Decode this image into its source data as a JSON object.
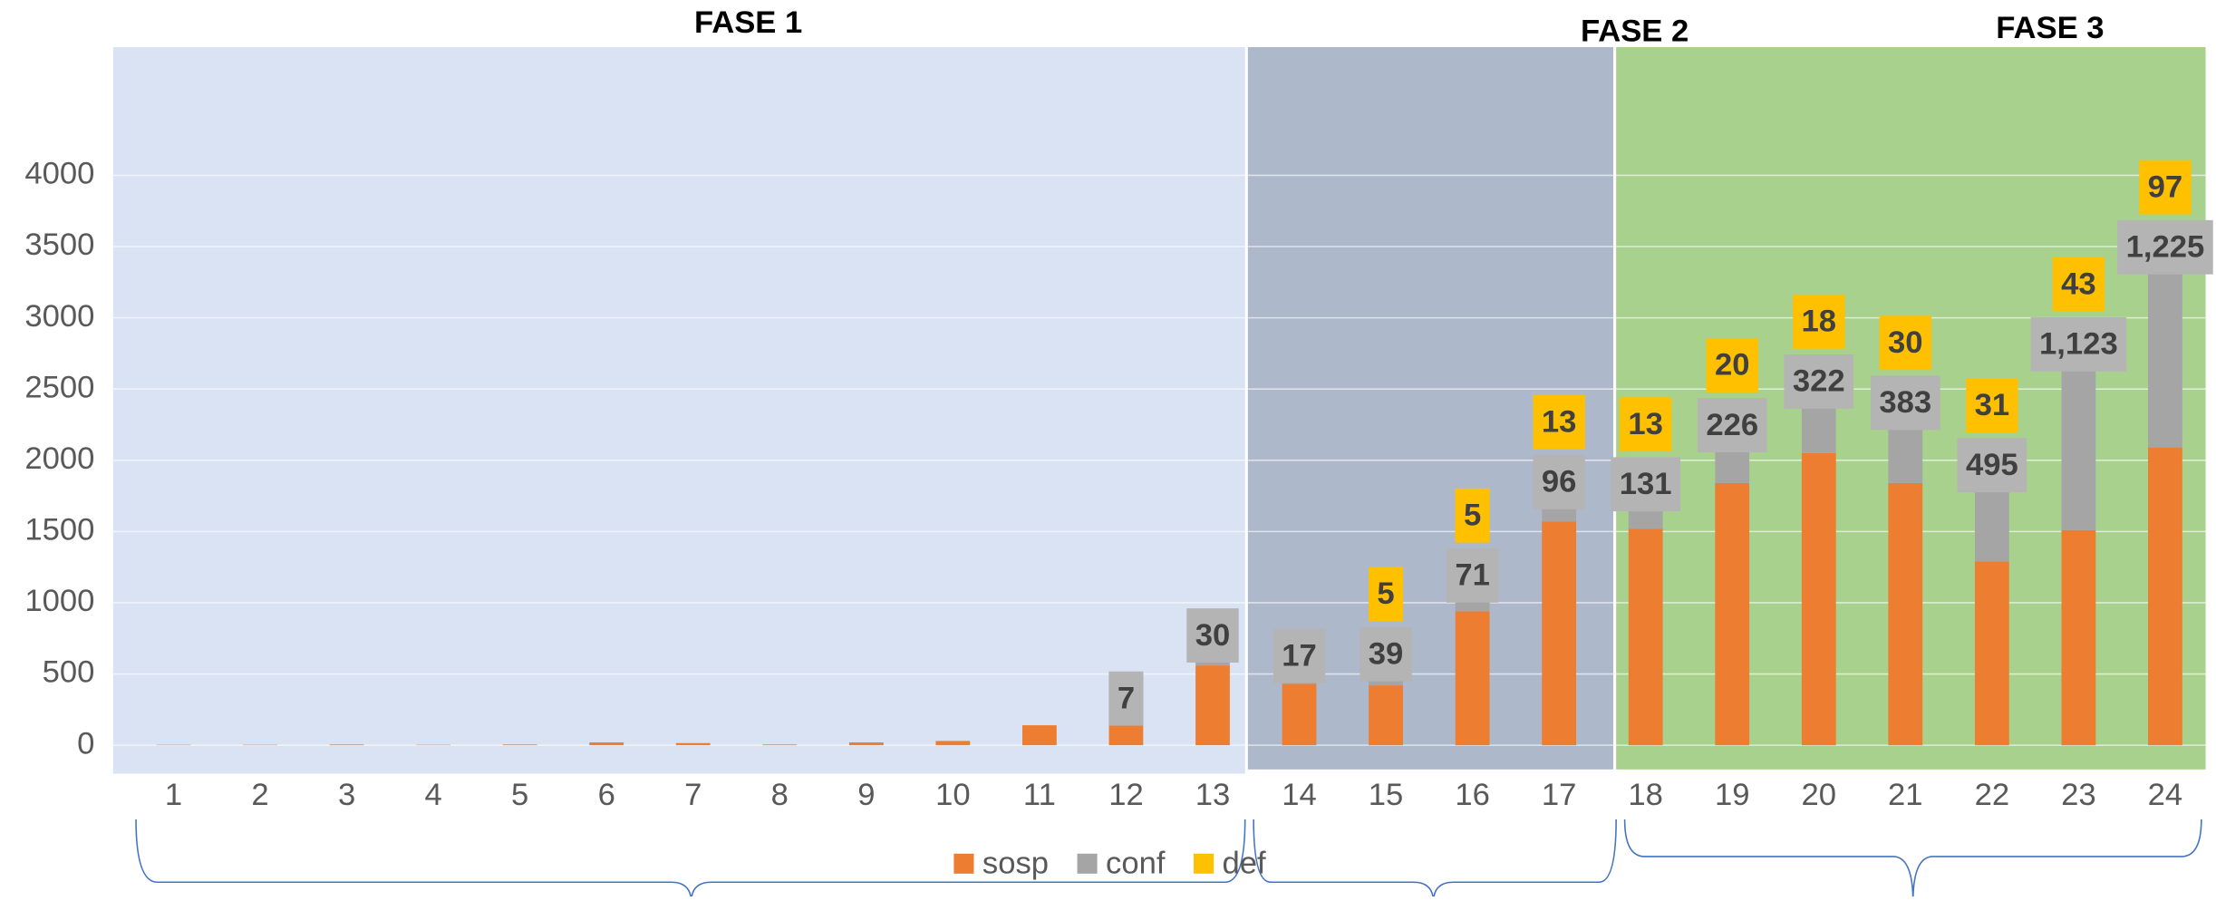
{
  "chart_data": {
    "type": "stacked_bar",
    "phases": [
      {
        "label": "FASE 1"
      },
      {
        "label": "FASE 2"
      },
      {
        "label": "FASE 3"
      }
    ],
    "categories": [
      "1",
      "2",
      "3",
      "4",
      "5",
      "6",
      "7",
      "8",
      "9",
      "10",
      "11",
      "12",
      "13",
      "14",
      "15",
      "16",
      "17",
      "18",
      "19",
      "20",
      "21",
      "22",
      "23",
      "24"
    ],
    "series": [
      {
        "name": "sosp",
        "color": "#ed7d31",
        "values": [
          3,
          3,
          5,
          3,
          5,
          20,
          15,
          5,
          20,
          30,
          140,
          140,
          560,
          430,
          420,
          940,
          1570,
          1520,
          1840,
          2050,
          1840,
          1290,
          1510,
          2090
        ]
      },
      {
        "name": "conf",
        "color": "#a5a5a5",
        "values": [
          0,
          0,
          0,
          0,
          0,
          0,
          0,
          0,
          0,
          0,
          0,
          7,
          30,
          17,
          39,
          71,
          96,
          131,
          226,
          322,
          383,
          495,
          1123,
          1225
        ],
        "value_labels": [
          null,
          null,
          null,
          null,
          null,
          null,
          null,
          null,
          null,
          null,
          null,
          "7",
          "30",
          "17",
          "39",
          "71",
          "96",
          "131",
          "226",
          "322",
          "383",
          "495",
          "1,123",
          "1,225"
        ]
      },
      {
        "name": "def",
        "color": "#ffc000",
        "values": [
          0,
          0,
          0,
          0,
          0,
          0,
          0,
          0,
          0,
          0,
          0,
          0,
          0,
          0,
          5,
          5,
          13,
          13,
          20,
          18,
          30,
          31,
          43,
          97
        ],
        "value_labels": [
          null,
          null,
          null,
          null,
          null,
          null,
          null,
          null,
          null,
          null,
          null,
          null,
          null,
          null,
          "5",
          "5",
          "13",
          "13",
          "20",
          "18",
          "30",
          "31",
          "43",
          "97"
        ]
      }
    ],
    "ylim": [
      -200,
      4900
    ],
    "yticks": [
      0,
      500,
      1000,
      1500,
      2000,
      2500,
      3000,
      3500,
      4000
    ],
    "grid": true,
    "legend": "bottom"
  }
}
